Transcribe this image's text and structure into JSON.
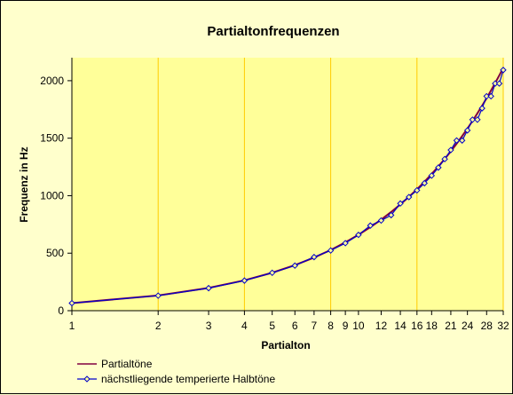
{
  "chart_data": {
    "type": "line",
    "title": "Partialtonfrequenzen",
    "xlabel": "Partialton",
    "ylabel": "Frequenz in Hz",
    "x_scale": "log2",
    "xlim": [
      1,
      32
    ],
    "ylim": [
      0,
      2200
    ],
    "x_ticks": [
      1,
      2,
      3,
      4,
      5,
      6,
      7,
      8,
      9,
      10,
      12,
      14,
      16,
      18,
      21,
      24,
      28,
      32
    ],
    "x_tick_labels": [
      "1",
      "2",
      "3",
      "4",
      "5",
      "6",
      "7",
      "8",
      "9",
      "10",
      "12",
      "14",
      "16",
      "18",
      "21",
      "24",
      "28",
      "32"
    ],
    "y_ticks": [
      0,
      500,
      1000,
      1500,
      2000
    ],
    "y_tick_labels": [
      "0",
      "500",
      "1000",
      "1500",
      "2000"
    ],
    "x_gridlines": [
      2,
      4,
      8,
      16,
      32
    ],
    "legend_position": "bottom-left",
    "colors": {
      "plot_background": "#ffff99",
      "outer_background": "#ffffcc",
      "grid": "#ffcc00"
    },
    "x": [
      1,
      2,
      3,
      4,
      5,
      6,
      7,
      8,
      9,
      10,
      11,
      12,
      13,
      14,
      15,
      16,
      17,
      18,
      19,
      20,
      21,
      22,
      23,
      24,
      25,
      26,
      27,
      28,
      29,
      30,
      31,
      32
    ],
    "series": [
      {
        "name": "Partialtöne",
        "color": "#800040",
        "marker": "none",
        "values": [
          66,
          132,
          198,
          264,
          330,
          396,
          462,
          528,
          594,
          660,
          726,
          792,
          858,
          924,
          990,
          1056,
          1122,
          1188,
          1254,
          1320,
          1386,
          1452,
          1518,
          1584,
          1650,
          1716,
          1782,
          1848,
          1914,
          1980,
          2046,
          2112
        ]
      },
      {
        "name": "nächstliegende temperierte Halbtöne",
        "color": "#0000cc",
        "marker": "diamond",
        "values": [
          65.4,
          130.8,
          196,
          261.6,
          329.6,
          392,
          466.2,
          523.3,
          587.3,
          659.3,
          740,
          784,
          830.6,
          932.3,
          987.8,
          1046.5,
          1108.7,
          1174.7,
          1244.5,
          1318.5,
          1396.9,
          1480,
          1480,
          1568,
          1661.2,
          1661.2,
          1760,
          1864.7,
          1864.7,
          1975.5,
          1975.5,
          2093
        ]
      }
    ]
  }
}
